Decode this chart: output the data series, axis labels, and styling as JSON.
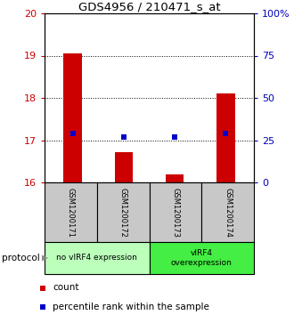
{
  "title": "GDS4956 / 210471_s_at",
  "samples": [
    "GSM1200171",
    "GSM1200172",
    "GSM1200173",
    "GSM1200174"
  ],
  "bar_values": [
    19.05,
    16.72,
    16.18,
    18.1
  ],
  "bar_baseline": 16.0,
  "bar_color": "#cc0000",
  "percentile_values": [
    17.15,
    17.07,
    17.07,
    17.15
  ],
  "percentile_color": "#0000cc",
  "ylim_left": [
    16,
    20
  ],
  "ylim_right": [
    0,
    100
  ],
  "yticks_left": [
    16,
    17,
    18,
    19,
    20
  ],
  "yticks_right": [
    0,
    25,
    50,
    75,
    100
  ],
  "ytick_labels_right": [
    "0",
    "25",
    "50",
    "75",
    "100%"
  ],
  "grid_lines": [
    17,
    18,
    19
  ],
  "groups": [
    {
      "label": "no vIRF4 expression",
      "samples": [
        0,
        1
      ],
      "color": "#bbffbb"
    },
    {
      "label": "vIRF4\noverexpression",
      "samples": [
        2,
        3
      ],
      "color": "#44ee44"
    }
  ],
  "protocol_label": "protocol",
  "legend_items": [
    {
      "color": "#cc0000",
      "label": "count"
    },
    {
      "color": "#0000cc",
      "label": "percentile rank within the sample"
    }
  ],
  "bg_color": "#ffffff",
  "plot_bg_color": "#ffffff",
  "tick_color_left": "#cc0000",
  "tick_color_right": "#0000bb",
  "sample_box_color": "#c8c8c8",
  "bar_width": 0.35
}
